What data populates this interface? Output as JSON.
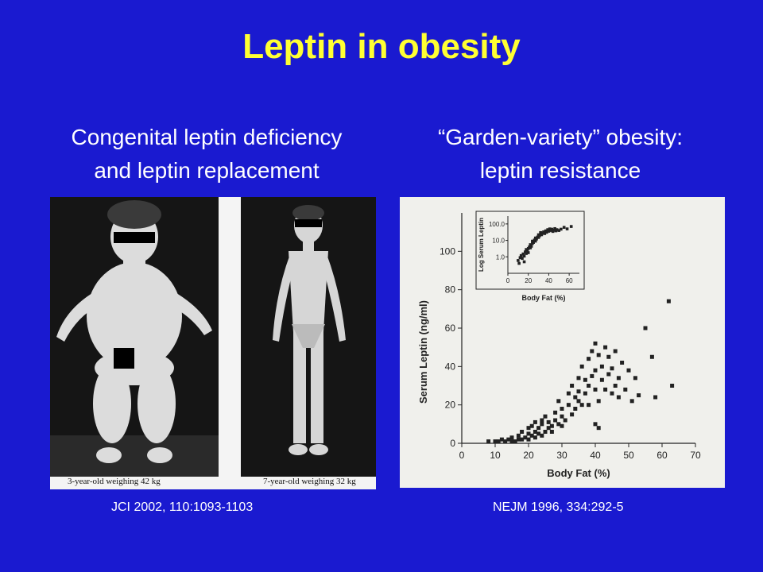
{
  "slide": {
    "title": "Leptin in obesity",
    "left": {
      "line1": "Congenital leptin deficiency",
      "line2": "and leptin replacement",
      "caption_a": "3-year-old weighing 42 kg",
      "caption_b": "7-year-old weighing 32 kg",
      "citation": "JCI 2002, 110:1093-1103"
    },
    "right": {
      "line1": "“Garden-variety” obesity:",
      "line2": "leptin resistance",
      "citation": "NEJM 1996, 334:292-5"
    },
    "colors": {
      "background": "#1a1ad0",
      "title": "#ffff33",
      "text": "#ffffff"
    }
  },
  "chart_data": [
    {
      "type": "scatter",
      "title": "",
      "xlabel": "Body Fat (%)",
      "ylabel": "Serum Leptin (ng/ml)",
      "xlim": [
        0,
        70
      ],
      "ylim": [
        0,
        120
      ],
      "xticks": [
        "0",
        "10",
        "20",
        "30",
        "40",
        "50",
        "60",
        "70"
      ],
      "yticks": [
        "0",
        "20",
        "40",
        "60",
        "80",
        "100"
      ],
      "points": [
        [
          8,
          1
        ],
        [
          10,
          1
        ],
        [
          11,
          1
        ],
        [
          12,
          2
        ],
        [
          13,
          1
        ],
        [
          14,
          2
        ],
        [
          15,
          1
        ],
        [
          15,
          3
        ],
        [
          16,
          1
        ],
        [
          17,
          2
        ],
        [
          17,
          4
        ],
        [
          18,
          2
        ],
        [
          18,
          6
        ],
        [
          19,
          3
        ],
        [
          20,
          2
        ],
        [
          20,
          5
        ],
        [
          20,
          8
        ],
        [
          21,
          4
        ],
        [
          21,
          9
        ],
        [
          22,
          3
        ],
        [
          22,
          6
        ],
        [
          22,
          11
        ],
        [
          23,
          5
        ],
        [
          23,
          8
        ],
        [
          24,
          4
        ],
        [
          24,
          10
        ],
        [
          24,
          12
        ],
        [
          25,
          6
        ],
        [
          25,
          14
        ],
        [
          26,
          8
        ],
        [
          26,
          11
        ],
        [
          27,
          9
        ],
        [
          27,
          6
        ],
        [
          28,
          12
        ],
        [
          28,
          16
        ],
        [
          29,
          10
        ],
        [
          29,
          22
        ],
        [
          30,
          14
        ],
        [
          30,
          18
        ],
        [
          30,
          9
        ],
        [
          31,
          12
        ],
        [
          32,
          20
        ],
        [
          32,
          26
        ],
        [
          33,
          15
        ],
        [
          33,
          30
        ],
        [
          34,
          18
        ],
        [
          34,
          24
        ],
        [
          35,
          22
        ],
        [
          35,
          27
        ],
        [
          35,
          34
        ],
        [
          36,
          20
        ],
        [
          36,
          40
        ],
        [
          37,
          26
        ],
        [
          37,
          33
        ],
        [
          38,
          30
        ],
        [
          38,
          44
        ],
        [
          38,
          20
        ],
        [
          39,
          35
        ],
        [
          39,
          48
        ],
        [
          40,
          28
        ],
        [
          40,
          38
        ],
        [
          40,
          52
        ],
        [
          41,
          22
        ],
        [
          41,
          46
        ],
        [
          42,
          33
        ],
        [
          42,
          40
        ],
        [
          43,
          28
        ],
        [
          43,
          50
        ],
        [
          44,
          36
        ],
        [
          44,
          45
        ],
        [
          45,
          26
        ],
        [
          45,
          39
        ],
        [
          46,
          48
        ],
        [
          46,
          30
        ],
        [
          47,
          34
        ],
        [
          47,
          24
        ],
        [
          48,
          42
        ],
        [
          49,
          28
        ],
        [
          50,
          38
        ],
        [
          51,
          22
        ],
        [
          52,
          34
        ],
        [
          53,
          25
        ],
        [
          55,
          60
        ],
        [
          57,
          45
        ],
        [
          58,
          24
        ],
        [
          62,
          74
        ],
        [
          63,
          30
        ],
        [
          40,
          10
        ],
        [
          41,
          8
        ]
      ]
    },
    {
      "type": "scatter",
      "title": "",
      "xlabel": "Body Fat (%)",
      "ylabel": "Log Serum Leptin",
      "log_y": true,
      "xlim": [
        0,
        70
      ],
      "ylim": [
        0.1,
        300
      ],
      "xticks": [
        "0",
        "20",
        "40",
        "60"
      ],
      "yticks": [
        "1.0",
        "10.0",
        "100.0"
      ],
      "points": [
        [
          10,
          0.6
        ],
        [
          12,
          0.9
        ],
        [
          13,
          1.2
        ],
        [
          14,
          0.8
        ],
        [
          15,
          1.5
        ],
        [
          16,
          1.1
        ],
        [
          17,
          2.0
        ],
        [
          18,
          1.6
        ],
        [
          18,
          2.8
        ],
        [
          19,
          2.4
        ],
        [
          20,
          3.2
        ],
        [
          20,
          1.8
        ],
        [
          21,
          4.0
        ],
        [
          22,
          3.5
        ],
        [
          22,
          5.5
        ],
        [
          23,
          4.4
        ],
        [
          24,
          6.5
        ],
        [
          24,
          9.0
        ],
        [
          25,
          7.5
        ],
        [
          26,
          10.5
        ],
        [
          27,
          9.0
        ],
        [
          27,
          14
        ],
        [
          28,
          12
        ],
        [
          29,
          16
        ],
        [
          30,
          15
        ],
        [
          30,
          22
        ],
        [
          31,
          19
        ],
        [
          32,
          25
        ],
        [
          32,
          30
        ],
        [
          33,
          22
        ],
        [
          34,
          28
        ],
        [
          35,
          33
        ],
        [
          36,
          26
        ],
        [
          37,
          38
        ],
        [
          38,
          31
        ],
        [
          39,
          45
        ],
        [
          40,
          36
        ],
        [
          41,
          50
        ],
        [
          42,
          40
        ],
        [
          43,
          48
        ],
        [
          44,
          35
        ],
        [
          45,
          42
        ],
        [
          46,
          52
        ],
        [
          47,
          38
        ],
        [
          48,
          45
        ],
        [
          50,
          40
        ],
        [
          52,
          48
        ],
        [
          55,
          62
        ],
        [
          58,
          50
        ],
        [
          62,
          70
        ],
        [
          16,
          0.5
        ],
        [
          11,
          0.4
        ]
      ]
    }
  ]
}
